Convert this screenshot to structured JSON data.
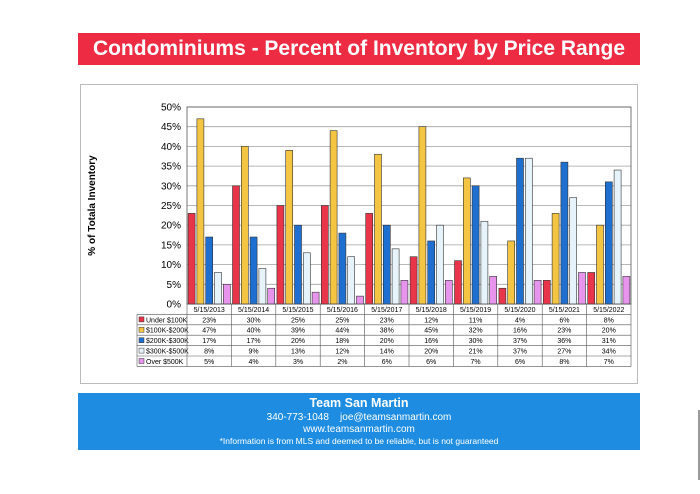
{
  "title": "Condominiums - Percent of Inventory by Price Range",
  "footer": {
    "name": "Team San Martin",
    "phone": "340-773-1048",
    "email": "joe@teamsanmartin.com",
    "website": "www.teamsanmartin.com",
    "disclaimer": "*Information is from MLS and deemed to be reliable, but is not guaranteed"
  },
  "chart_data": {
    "type": "bar",
    "ylabel": "% of Totala Inventory",
    "ylim": [
      0,
      50
    ],
    "yticks": [
      "0%",
      "5%",
      "10%",
      "15%",
      "20%",
      "25%",
      "30%",
      "35%",
      "40%",
      "45%",
      "50%"
    ],
    "grid": true,
    "legend": "data-table-left",
    "categories": [
      "5/15/2013",
      "5/15/2014",
      "5/15/2015",
      "5/15/2016",
      "5/15/2017",
      "5/15/2018",
      "5/15/2019",
      "5/15/2020",
      "5/15/2021",
      "5/15/2022"
    ],
    "series": [
      {
        "name": "Under $100K",
        "color": "#e8354a",
        "values": [
          23,
          30,
          25,
          25,
          23,
          12,
          11,
          4,
          6,
          8
        ],
        "labels": [
          "23%",
          "30%",
          "25%",
          "25%",
          "23%",
          "12%",
          "11%",
          "4%",
          "6%",
          "8%"
        ]
      },
      {
        "name": "$100K-$200K",
        "color": "#f4c542",
        "values": [
          47,
          40,
          39,
          44,
          38,
          45,
          32,
          16,
          23,
          20
        ],
        "labels": [
          "47%",
          "40%",
          "39%",
          "44%",
          "38%",
          "45%",
          "32%",
          "16%",
          "23%",
          "20%"
        ]
      },
      {
        "name": "$200K-$300K",
        "color": "#1e6fd0",
        "values": [
          17,
          17,
          20,
          18,
          20,
          16,
          30,
          37,
          36,
          31
        ],
        "labels": [
          "17%",
          "17%",
          "20%",
          "18%",
          "20%",
          "16%",
          "30%",
          "37%",
          "36%",
          "31%"
        ]
      },
      {
        "name": "$300K-$500K",
        "color": "#e6f3fb",
        "values": [
          8,
          9,
          13,
          12,
          14,
          20,
          21,
          37,
          27,
          34
        ],
        "labels": [
          "8%",
          "9%",
          "13%",
          "12%",
          "14%",
          "20%",
          "21%",
          "37%",
          "27%",
          "34%"
        ]
      },
      {
        "name": "Over $500K",
        "color": "#e694ec",
        "values": [
          5,
          4,
          3,
          2,
          6,
          6,
          7,
          6,
          8,
          7
        ],
        "labels": [
          "5%",
          "4%",
          "3%",
          "2%",
          "6%",
          "6%",
          "7%",
          "6%",
          "8%",
          "7%"
        ]
      }
    ]
  }
}
